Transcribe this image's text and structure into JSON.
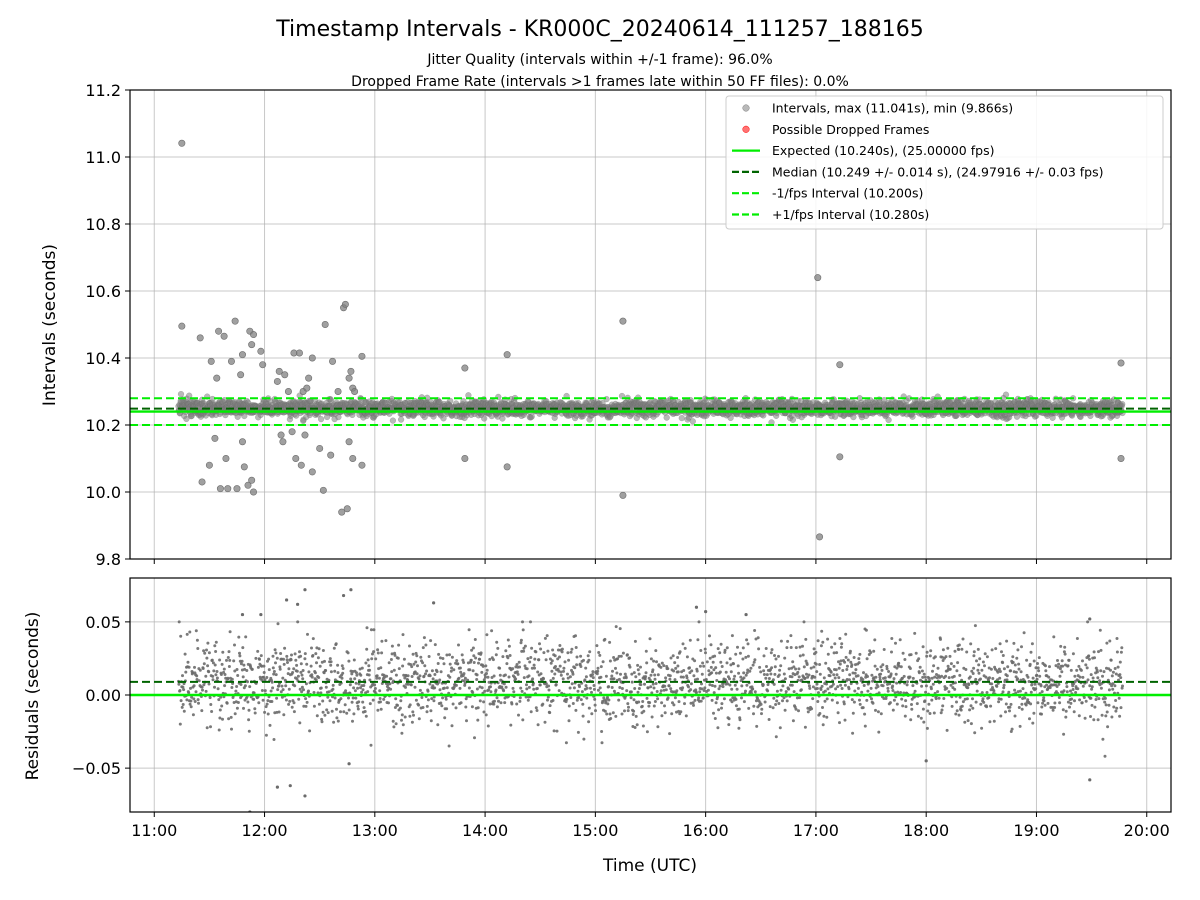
{
  "chart_data": {
    "title": "Timestamp Intervals - KR000C_20240614_111257_188165",
    "subtitle_lines": [
      "Jitter Quality (intervals within +/-1 frame): 96.0%",
      "Dropped Frame Rate (intervals >1 frames late within 50 FF files): 0.0%"
    ],
    "xlabel": "Time (UTC)",
    "x_ticks": [
      "11:00",
      "12:00",
      "13:00",
      "14:00",
      "15:00",
      "16:00",
      "17:00",
      "18:00",
      "19:00",
      "20:00"
    ],
    "x_range_hours": [
      10.78,
      20.22
    ],
    "data_time_range_hours": [
      11.22,
      19.78
    ],
    "grid": true,
    "panels": [
      {
        "type": "scatter",
        "ylabel": "Intervals (seconds)",
        "ylim": [
          9.8,
          11.2
        ],
        "y_ticks": [
          "11.2",
          "11.0",
          "10.8",
          "10.6",
          "10.4",
          "10.2",
          "10.0",
          "9.8"
        ],
        "y_tick_values": [
          11.2,
          11.0,
          10.8,
          10.6,
          10.4,
          10.2,
          10.0,
          9.8
        ],
        "legend_position": "top-right",
        "legend": [
          {
            "label": "Intervals, max (11.041s), min (9.866s)",
            "kind": "dot",
            "color": "#808080"
          },
          {
            "label": "Possible Dropped Frames",
            "kind": "dot",
            "color": "#ff0000"
          },
          {
            "label": "Expected (10.240s), (25.00000 fps)",
            "kind": "line",
            "color": "#00ee00"
          },
          {
            "label": "Median (10.249 +/- 0.014 s), (24.97916 +/- 0.03 fps)",
            "kind": "dash",
            "color": "#006400"
          },
          {
            "label": "-1/fps Interval (10.200s)",
            "kind": "dash",
            "color": "#00ee00"
          },
          {
            "label": "+1/fps Interval (10.280s)",
            "kind": "dash",
            "color": "#00ee00"
          }
        ],
        "reference_lines": {
          "expected": 10.24,
          "median": 10.249,
          "minus_one_frame": 10.2,
          "plus_one_frame": 10.28
        },
        "intervals_typical_mean": 10.25,
        "intervals_typical_sd": 0.012,
        "outliers": [
          {
            "t": "11:15",
            "y": 11.041
          },
          {
            "t": "11:15",
            "y": 10.495
          },
          {
            "t": "11:25",
            "y": 10.46
          },
          {
            "t": "11:26",
            "y": 10.03
          },
          {
            "t": "11:30",
            "y": 10.08
          },
          {
            "t": "11:31",
            "y": 10.39
          },
          {
            "t": "11:33",
            "y": 10.16
          },
          {
            "t": "11:34",
            "y": 10.34
          },
          {
            "t": "11:35",
            "y": 10.48
          },
          {
            "t": "11:36",
            "y": 10.01
          },
          {
            "t": "11:38",
            "y": 10.465
          },
          {
            "t": "11:39",
            "y": 10.1
          },
          {
            "t": "11:40",
            "y": 10.01
          },
          {
            "t": "11:42",
            "y": 10.39
          },
          {
            "t": "11:44",
            "y": 10.51
          },
          {
            "t": "11:45",
            "y": 10.01
          },
          {
            "t": "11:47",
            "y": 10.35
          },
          {
            "t": "11:48",
            "y": 10.41
          },
          {
            "t": "11:48",
            "y": 10.15
          },
          {
            "t": "11:49",
            "y": 10.075
          },
          {
            "t": "11:51",
            "y": 10.02
          },
          {
            "t": "11:52",
            "y": 10.48
          },
          {
            "t": "11:53",
            "y": 10.44
          },
          {
            "t": "11:53",
            "y": 10.035
          },
          {
            "t": "11:54",
            "y": 10.47
          },
          {
            "t": "11:54",
            "y": 10.0
          },
          {
            "t": "11:58",
            "y": 10.42
          },
          {
            "t": "11:59",
            "y": 10.38
          },
          {
            "t": "12:07",
            "y": 10.33
          },
          {
            "t": "12:08",
            "y": 10.36
          },
          {
            "t": "12:09",
            "y": 10.17
          },
          {
            "t": "12:10",
            "y": 10.15
          },
          {
            "t": "12:11",
            "y": 10.35
          },
          {
            "t": "12:13",
            "y": 10.3
          },
          {
            "t": "12:15",
            "y": 10.18
          },
          {
            "t": "12:16",
            "y": 10.415
          },
          {
            "t": "12:17",
            "y": 10.1
          },
          {
            "t": "12:19",
            "y": 10.415
          },
          {
            "t": "12:20",
            "y": 10.08
          },
          {
            "t": "12:21",
            "y": 10.3
          },
          {
            "t": "12:22",
            "y": 10.17
          },
          {
            "t": "12:23",
            "y": 10.31
          },
          {
            "t": "12:24",
            "y": 10.34
          },
          {
            "t": "12:26",
            "y": 10.06
          },
          {
            "t": "12:26",
            "y": 10.4
          },
          {
            "t": "12:30",
            "y": 10.13
          },
          {
            "t": "12:32",
            "y": 10.005
          },
          {
            "t": "12:33",
            "y": 10.5
          },
          {
            "t": "12:36",
            "y": 10.11
          },
          {
            "t": "12:37",
            "y": 10.39
          },
          {
            "t": "12:40",
            "y": 10.3
          },
          {
            "t": "12:42",
            "y": 9.94
          },
          {
            "t": "12:43",
            "y": 10.55
          },
          {
            "t": "12:44",
            "y": 10.56
          },
          {
            "t": "12:45",
            "y": 9.95
          },
          {
            "t": "12:46",
            "y": 10.15
          },
          {
            "t": "12:46",
            "y": 10.34
          },
          {
            "t": "12:47",
            "y": 10.36
          },
          {
            "t": "12:48",
            "y": 10.1
          },
          {
            "t": "12:48",
            "y": 10.31
          },
          {
            "t": "12:49",
            "y": 10.3
          },
          {
            "t": "12:53",
            "y": 10.405
          },
          {
            "t": "12:53",
            "y": 10.08
          },
          {
            "t": "13:49",
            "y": 10.37
          },
          {
            "t": "13:49",
            "y": 10.1
          },
          {
            "t": "14:12",
            "y": 10.41
          },
          {
            "t": "14:12",
            "y": 10.075
          },
          {
            "t": "15:15",
            "y": 10.51
          },
          {
            "t": "15:15",
            "y": 9.99
          },
          {
            "t": "17:01",
            "y": 10.64
          },
          {
            "t": "17:02",
            "y": 9.866
          },
          {
            "t": "17:13",
            "y": 10.38
          },
          {
            "t": "17:13",
            "y": 10.105
          },
          {
            "t": "19:46",
            "y": 10.385
          },
          {
            "t": "19:46",
            "y": 10.1
          }
        ]
      },
      {
        "type": "scatter",
        "ylabel": "Residuals (seconds)",
        "ylim": [
          -0.08,
          0.08
        ],
        "y_ticks": [
          "0.05",
          "0.00",
          "−0.05"
        ],
        "y_tick_values": [
          0.05,
          0.0,
          -0.05
        ],
        "reference_lines": {
          "expected": 0.0,
          "median": 0.009
        },
        "residuals_typical_mean": 0.009,
        "residuals_typical_sd": 0.014,
        "outliers": [
          {
            "t": "11:48",
            "y": 0.055
          },
          {
            "t": "11:52",
            "y": -0.08
          },
          {
            "t": "11:58",
            "y": 0.055
          },
          {
            "t": "12:07",
            "y": -0.063
          },
          {
            "t": "12:12",
            "y": 0.065
          },
          {
            "t": "12:14",
            "y": -0.062
          },
          {
            "t": "12:18",
            "y": 0.062
          },
          {
            "t": "12:22",
            "y": 0.072
          },
          {
            "t": "12:22",
            "y": -0.069
          },
          {
            "t": "12:43",
            "y": 0.068
          },
          {
            "t": "12:47",
            "y": 0.072
          },
          {
            "t": "12:46",
            "y": -0.047
          },
          {
            "t": "13:32",
            "y": 0.063
          },
          {
            "t": "15:55",
            "y": 0.06
          },
          {
            "t": "16:00",
            "y": 0.057
          },
          {
            "t": "16:22",
            "y": 0.055
          },
          {
            "t": "18:00",
            "y": -0.045
          },
          {
            "t": "19:29",
            "y": 0.052
          },
          {
            "t": "19:29",
            "y": -0.058
          }
        ]
      }
    ]
  },
  "colors": {
    "interval_points": "#808080",
    "residual_points": "#6b6b6b",
    "expected": "#00ee00",
    "median": "#006400",
    "frame_bounds": "#00ee00",
    "dropped": "#ff0000",
    "grid": "#b0b0b0"
  }
}
